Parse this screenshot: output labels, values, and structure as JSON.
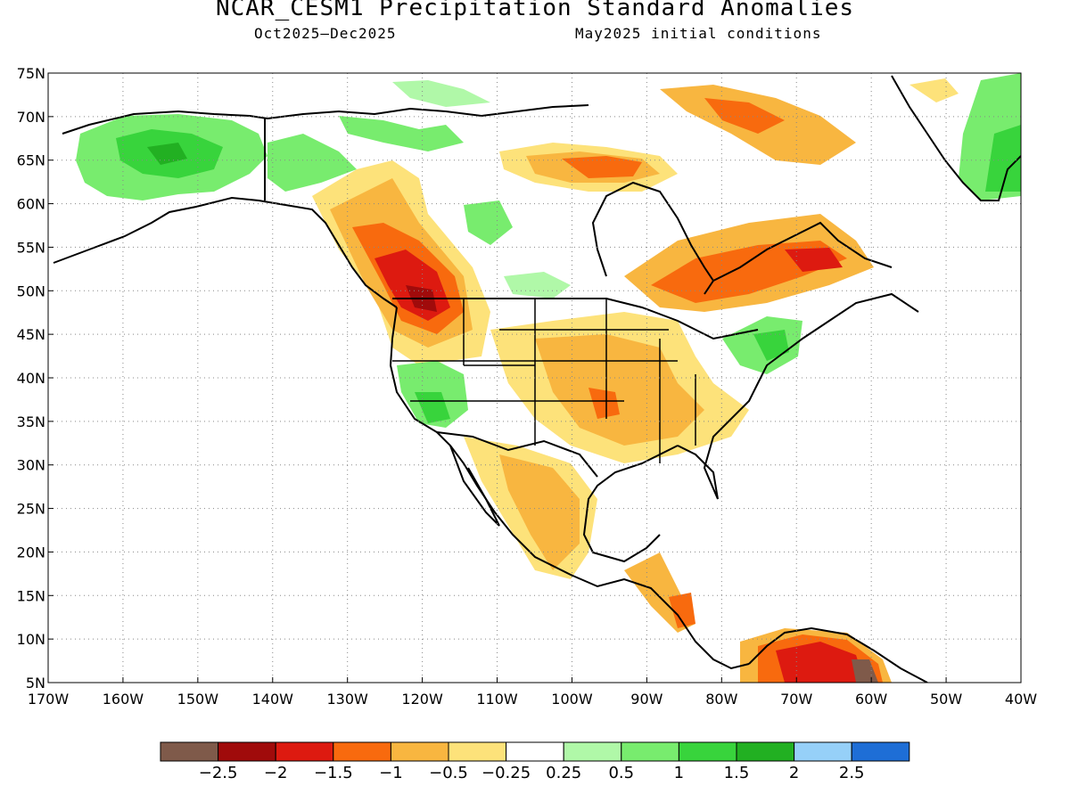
{
  "header": {
    "title": "NCAR_CESM1 Precipitation Standard Anomalies",
    "period": "Oct2025–Dec2025",
    "init": "May2025 initial conditions"
  },
  "map": {
    "lat_labels": [
      "75N",
      "70N",
      "65N",
      "60N",
      "55N",
      "50N",
      "45N",
      "40N",
      "35N",
      "30N",
      "25N",
      "20N",
      "15N",
      "10N",
      "5N"
    ],
    "lon_labels": [
      "170W",
      "160W",
      "150W",
      "140W",
      "130W",
      "120W",
      "110W",
      "100W",
      "90W",
      "80W",
      "70W",
      "60W",
      "50W",
      "40W"
    ],
    "lat_values": [
      75,
      70,
      65,
      60,
      55,
      50,
      45,
      40,
      35,
      30,
      25,
      20,
      15,
      10,
      5
    ],
    "lon_values": [
      -170,
      -160,
      -150,
      -140,
      -130,
      -120,
      -110,
      -100,
      -90,
      -80,
      -70,
      -60,
      -50,
      -40
    ]
  },
  "colorbar": {
    "colors": [
      "#7f5a4a",
      "#a00b0b",
      "#dd1a10",
      "#f86a0e",
      "#f8b640",
      "#fde27a",
      "#ffffff",
      "#b0f8a8",
      "#78ec6e",
      "#38d43c",
      "#22b022",
      "#96d0f8",
      "#1e6ed6"
    ],
    "labels": [
      "−2.5",
      "−2",
      "−1.5",
      "−1",
      "−0.5",
      "−0.25",
      "0.25",
      "0.5",
      "1",
      "1.5",
      "2",
      "2.5"
    ]
  }
}
